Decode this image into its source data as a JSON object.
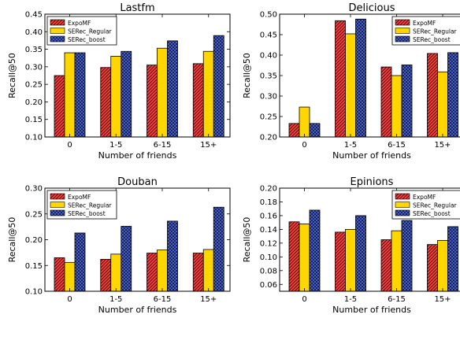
{
  "colors": {
    "ExpoMF": "#e8413c",
    "SERec_Regular": "#ffd600",
    "SERec_boost": "#4a63d6"
  },
  "chart_data": [
    {
      "type": "bar",
      "title": "Lastfm",
      "xlabel": "Number of friends",
      "ylabel": "Recall@50",
      "categories": [
        "0",
        "1-5",
        "6-15",
        "15+"
      ],
      "ylim": [
        0.1,
        0.45
      ],
      "yticks": [
        "0.10",
        "0.15",
        "0.20",
        "0.25",
        "0.30",
        "0.35",
        "0.40",
        "0.45"
      ],
      "legend": "top-left",
      "series": [
        {
          "name": "ExpoMF",
          "values": [
            0.275,
            0.298,
            0.305,
            0.309
          ]
        },
        {
          "name": "SERec_Regular",
          "values": [
            0.34,
            0.33,
            0.353,
            0.344
          ]
        },
        {
          "name": "SERec_boost",
          "values": [
            0.34,
            0.344,
            0.374,
            0.389
          ]
        }
      ]
    },
    {
      "type": "bar",
      "title": "Delicious",
      "xlabel": "Number of friends",
      "ylabel": "Recall@50",
      "categories": [
        "0",
        "1-5",
        "6-15",
        "15+"
      ],
      "ylim": [
        0.2,
        0.5
      ],
      "yticks": [
        "0.20",
        "0.25",
        "0.30",
        "0.35",
        "0.40",
        "0.45",
        "0.50"
      ],
      "legend": "top-right",
      "series": [
        {
          "name": "ExpoMF",
          "values": [
            0.233,
            0.484,
            0.371,
            0.404
          ]
        },
        {
          "name": "SERec_Regular",
          "values": [
            0.273,
            0.452,
            0.35,
            0.359
          ]
        },
        {
          "name": "SERec_boost",
          "values": [
            0.233,
            0.488,
            0.376,
            0.406
          ]
        }
      ]
    },
    {
      "type": "bar",
      "title": "Douban",
      "xlabel": "Number of friends",
      "ylabel": "Recall@50",
      "categories": [
        "0",
        "1-5",
        "6-15",
        "15+"
      ],
      "ylim": [
        0.1,
        0.3
      ],
      "yticks": [
        "0.10",
        "0.15",
        "0.20",
        "0.25",
        "0.30"
      ],
      "legend": "top-left",
      "series": [
        {
          "name": "ExpoMF",
          "values": [
            0.165,
            0.162,
            0.174,
            0.174
          ]
        },
        {
          "name": "SERec_Regular",
          "values": [
            0.156,
            0.172,
            0.18,
            0.181
          ]
        },
        {
          "name": "SERec_boost",
          "values": [
            0.213,
            0.226,
            0.236,
            0.263
          ]
        }
      ]
    },
    {
      "type": "bar",
      "title": "Epinions",
      "xlabel": "Number of friends",
      "ylabel": "Recall@50",
      "categories": [
        "0",
        "1-5",
        "6-15",
        "15+"
      ],
      "ylim": [
        0.05,
        0.2
      ],
      "yticks": [
        "0.06",
        "0.08",
        "0.10",
        "0.12",
        "0.14",
        "0.16",
        "0.18",
        "0.20"
      ],
      "legend": "top-right",
      "series": [
        {
          "name": "ExpoMF",
          "values": [
            0.151,
            0.136,
            0.125,
            0.118
          ]
        },
        {
          "name": "SERec_Regular",
          "values": [
            0.148,
            0.14,
            0.138,
            0.124
          ]
        },
        {
          "name": "SERec_boost",
          "values": [
            0.168,
            0.16,
            0.153,
            0.144
          ]
        }
      ]
    }
  ]
}
